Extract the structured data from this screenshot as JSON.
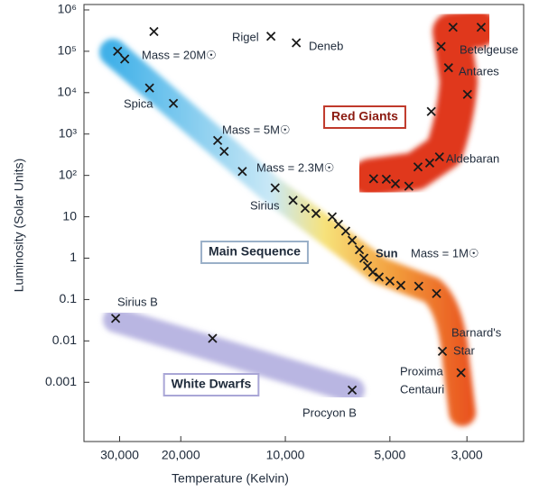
{
  "chart_data": {
    "type": "scatter",
    "x_label": "Temperature (Kelvin)",
    "y_label": "Luminosity (Solar Units)",
    "x_log": true,
    "y_log": true,
    "xlim": [
      38000,
      2060
    ],
    "ylim": [
      3.7e-05,
      1350000
    ],
    "xticks": [
      {
        "value": 30000,
        "label": "30,000"
      },
      {
        "value": 20000,
        "label": "20,000"
      },
      {
        "value": 10000,
        "label": "10,000"
      },
      {
        "value": 5000,
        "label": "5,000"
      },
      {
        "value": 3000,
        "label": "3,000"
      }
    ],
    "yticks": [
      {
        "value": 1000000,
        "label": "10⁶"
      },
      {
        "value": 100000,
        "label": "10⁵"
      },
      {
        "value": 10000,
        "label": "10⁴"
      },
      {
        "value": 1000,
        "label": "10³"
      },
      {
        "value": 100,
        "label": "10²"
      },
      10,
      1,
      0.1,
      0.01,
      0.001
    ],
    "color": "#1a1a1a",
    "x": [
      23900,
      30400,
      29000,
      24600,
      21000,
      15660,
      15000,
      13300,
      10700,
      9500,
      8770,
      8160,
      7330,
      7030,
      6700,
      6420,
      6120,
      5940,
      5800,
      5600,
      5370,
      5000,
      4650,
      4130,
      3670,
      30800,
      16200,
      6420,
      3530,
      3120,
      5570,
      5120,
      4820,
      4410,
      4150,
      3840,
      3600,
      3800,
      2990,
      3390,
      3560,
      3290,
      2730,
      11000,
      9300
    ],
    "values": [
      300000,
      100000,
      65000,
      13000,
      5500,
      700,
      380,
      125,
      50,
      25,
      16,
      12,
      10,
      6.6,
      4.5,
      2.7,
      1.6,
      1,
      0.65,
      0.46,
      0.35,
      0.28,
      0.22,
      0.21,
      0.14,
      0.035,
      0.0115,
      0.00065,
      0.0056,
      0.0017,
      83,
      81,
      63,
      55,
      160,
      200,
      280,
      3500,
      9100,
      40000,
      130000,
      380000,
      380000,
      230000,
      160000
    ],
    "annotations": [
      {
        "text": "Rigel"
      },
      {
        "text": "Deneb"
      },
      {
        "text": "Mass = 20M☉"
      },
      {
        "text": "Betelgeuse"
      },
      {
        "text": "Antares"
      },
      {
        "text": "Spica"
      },
      {
        "text": "Mass = 5M☉"
      },
      {
        "text": "Mass = 2.3M☉"
      },
      {
        "text": "Aldebaran"
      },
      {
        "text": "Sirius"
      },
      {
        "text": "Sun"
      },
      {
        "text": "Mass = 1M☉"
      },
      {
        "text": "Sirius B"
      },
      {
        "lines": [
          "Barnard's",
          "Star"
        ]
      },
      {
        "lines": [
          "Proxima",
          "Centauri"
        ]
      },
      {
        "text": "Procyon B"
      }
    ],
    "regions": [
      "Red Giants",
      "Main Sequence",
      "White Dwarfs"
    ]
  }
}
